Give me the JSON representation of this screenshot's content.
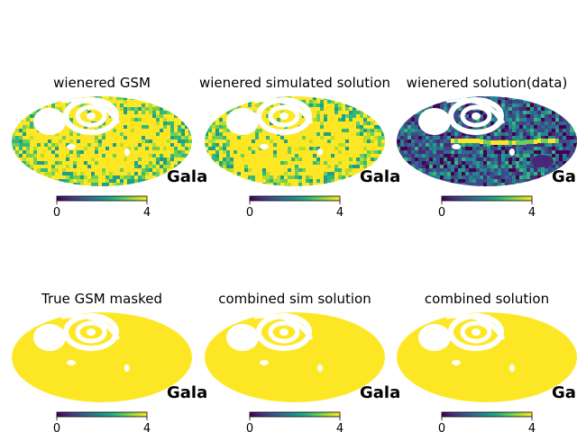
{
  "chart_data": [
    {
      "type": "heatmap",
      "projection": "mollweide",
      "title": "wienered GSM",
      "coord_label": "Gala",
      "colorbar": {
        "min": 0,
        "max": 4,
        "ticks": [
          "0",
          "4"
        ]
      },
      "appearance": "mostly-saturated",
      "masked_region": "upper-left"
    },
    {
      "type": "heatmap",
      "projection": "mollweide",
      "title": "wienered simulated solution",
      "coord_label": "Gala",
      "colorbar": {
        "min": 0,
        "max": 4,
        "ticks": [
          "0",
          "4"
        ]
      },
      "appearance": "mostly-saturated",
      "masked_region": "upper-left"
    },
    {
      "type": "heatmap",
      "projection": "mollweide",
      "title": "wienered solution(data)",
      "coord_label": "Gala",
      "colorbar": {
        "min": 0,
        "max": 4,
        "ticks": [
          "0",
          "4"
        ]
      },
      "appearance": "mixed-low",
      "masked_region": "upper-left"
    },
    {
      "type": "heatmap",
      "projection": "mollweide",
      "title": "True GSM masked",
      "coord_label": "Gala",
      "colorbar": {
        "min": 0,
        "max": 4,
        "ticks": [
          "0",
          "4"
        ]
      },
      "appearance": "saturated",
      "masked_region": "upper-left"
    },
    {
      "type": "heatmap",
      "projection": "mollweide",
      "title": "combined sim solution",
      "coord_label": "Gala",
      "colorbar": {
        "min": 0,
        "max": 4,
        "ticks": [
          "0",
          "4"
        ]
      },
      "appearance": "saturated",
      "masked_region": "upper-left"
    },
    {
      "type": "heatmap",
      "projection": "mollweide",
      "title": "combined solution",
      "coord_label": "Gala",
      "colorbar": {
        "min": 0,
        "max": 4,
        "ticks": [
          "0",
          "4"
        ]
      },
      "appearance": "saturated",
      "masked_region": "upper-left"
    }
  ],
  "colors": {
    "viridis": [
      "#440154",
      "#482878",
      "#3e4989",
      "#31688e",
      "#26828e",
      "#1f9e89",
      "#35b779",
      "#6ece58",
      "#b5de2b",
      "#fde725"
    ],
    "masked": "#ffffff"
  }
}
